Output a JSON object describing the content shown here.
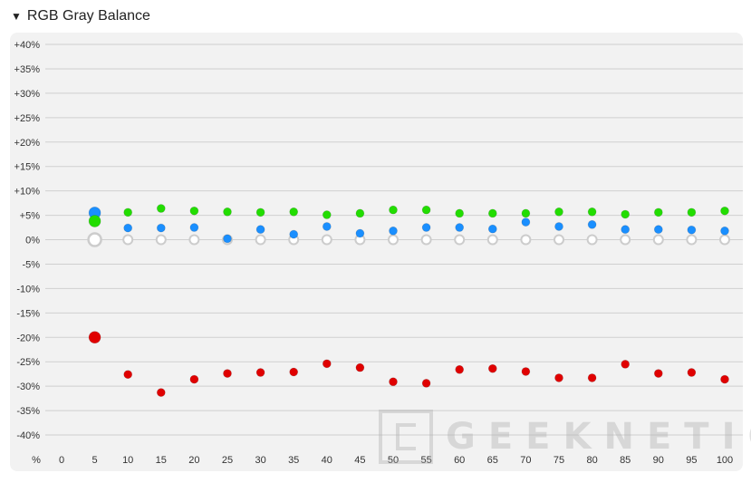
{
  "header": {
    "title": "RGB Gray Balance",
    "toggle_icon": "triangle-down-icon"
  },
  "watermark": {
    "text": "GEEKNETIC"
  },
  "chart_data": {
    "type": "scatter",
    "title": "RGB Gray Balance",
    "ylim": [
      -40,
      40
    ],
    "y_ticks": [
      "+40%",
      "+35%",
      "+30%",
      "+25%",
      "+20%",
      "+15%",
      "+10%",
      "+5%",
      "0%",
      "-5%",
      "-10%",
      "-15%",
      "-20%",
      "-25%",
      "-30%",
      "-35%",
      "-40%"
    ],
    "x_unit_label": "%",
    "x": [
      0,
      5,
      10,
      15,
      20,
      25,
      30,
      35,
      40,
      45,
      50,
      55,
      60,
      65,
      70,
      75,
      80,
      85,
      90,
      95,
      100
    ],
    "grid": true,
    "colors": {
      "red": "#e00000",
      "green": "#22dd00",
      "blue": "#1a8fff",
      "neutral": "#cccccc"
    },
    "series": [
      {
        "name": "Green",
        "color": "#22dd00",
        "x": [
          5,
          10,
          15,
          20,
          25,
          30,
          35,
          40,
          45,
          50,
          55,
          60,
          65,
          70,
          75,
          80,
          85,
          90,
          95,
          100
        ],
        "values": [
          3.8,
          5.6,
          6.4,
          5.9,
          5.7,
          5.6,
          5.7,
          5.1,
          5.4,
          6.1,
          6.1,
          5.4,
          5.4,
          5.4,
          5.7,
          5.7,
          5.2,
          5.6,
          5.6,
          5.9
        ]
      },
      {
        "name": "Blue",
        "color": "#1a8fff",
        "x": [
          5,
          10,
          15,
          20,
          25,
          30,
          35,
          40,
          45,
          50,
          55,
          60,
          65,
          70,
          75,
          80,
          85,
          90,
          95,
          100
        ],
        "values": [
          5.5,
          2.4,
          2.4,
          2.5,
          0.2,
          2.1,
          1.1,
          2.7,
          1.3,
          1.8,
          2.5,
          2.5,
          2.2,
          3.6,
          2.7,
          3.1,
          2.1,
          2.1,
          2.0,
          1.8
        ]
      },
      {
        "name": "Red",
        "color": "#e00000",
        "x": [
          5,
          10,
          15,
          20,
          25,
          30,
          35,
          40,
          45,
          50,
          55,
          60,
          65,
          70,
          75,
          80,
          85,
          90,
          95,
          100
        ],
        "values": [
          -20.0,
          -27.6,
          -31.3,
          -28.6,
          -27.4,
          -27.2,
          -27.1,
          -25.4,
          -26.2,
          -29.1,
          -29.4,
          -26.6,
          -26.4,
          -27.0,
          -28.3,
          -28.3,
          -25.5,
          -27.4,
          -27.2,
          -28.6
        ]
      },
      {
        "name": "Neutral",
        "color": "#cccccc",
        "x": [
          5,
          10,
          15,
          20,
          25,
          30,
          35,
          40,
          45,
          50,
          55,
          60,
          65,
          70,
          75,
          80,
          85,
          90,
          95,
          100
        ],
        "values": [
          0,
          0,
          0,
          0,
          0,
          0,
          0,
          0,
          0,
          0,
          0,
          0,
          0,
          0,
          0,
          0,
          0,
          0,
          0,
          0
        ]
      }
    ]
  }
}
